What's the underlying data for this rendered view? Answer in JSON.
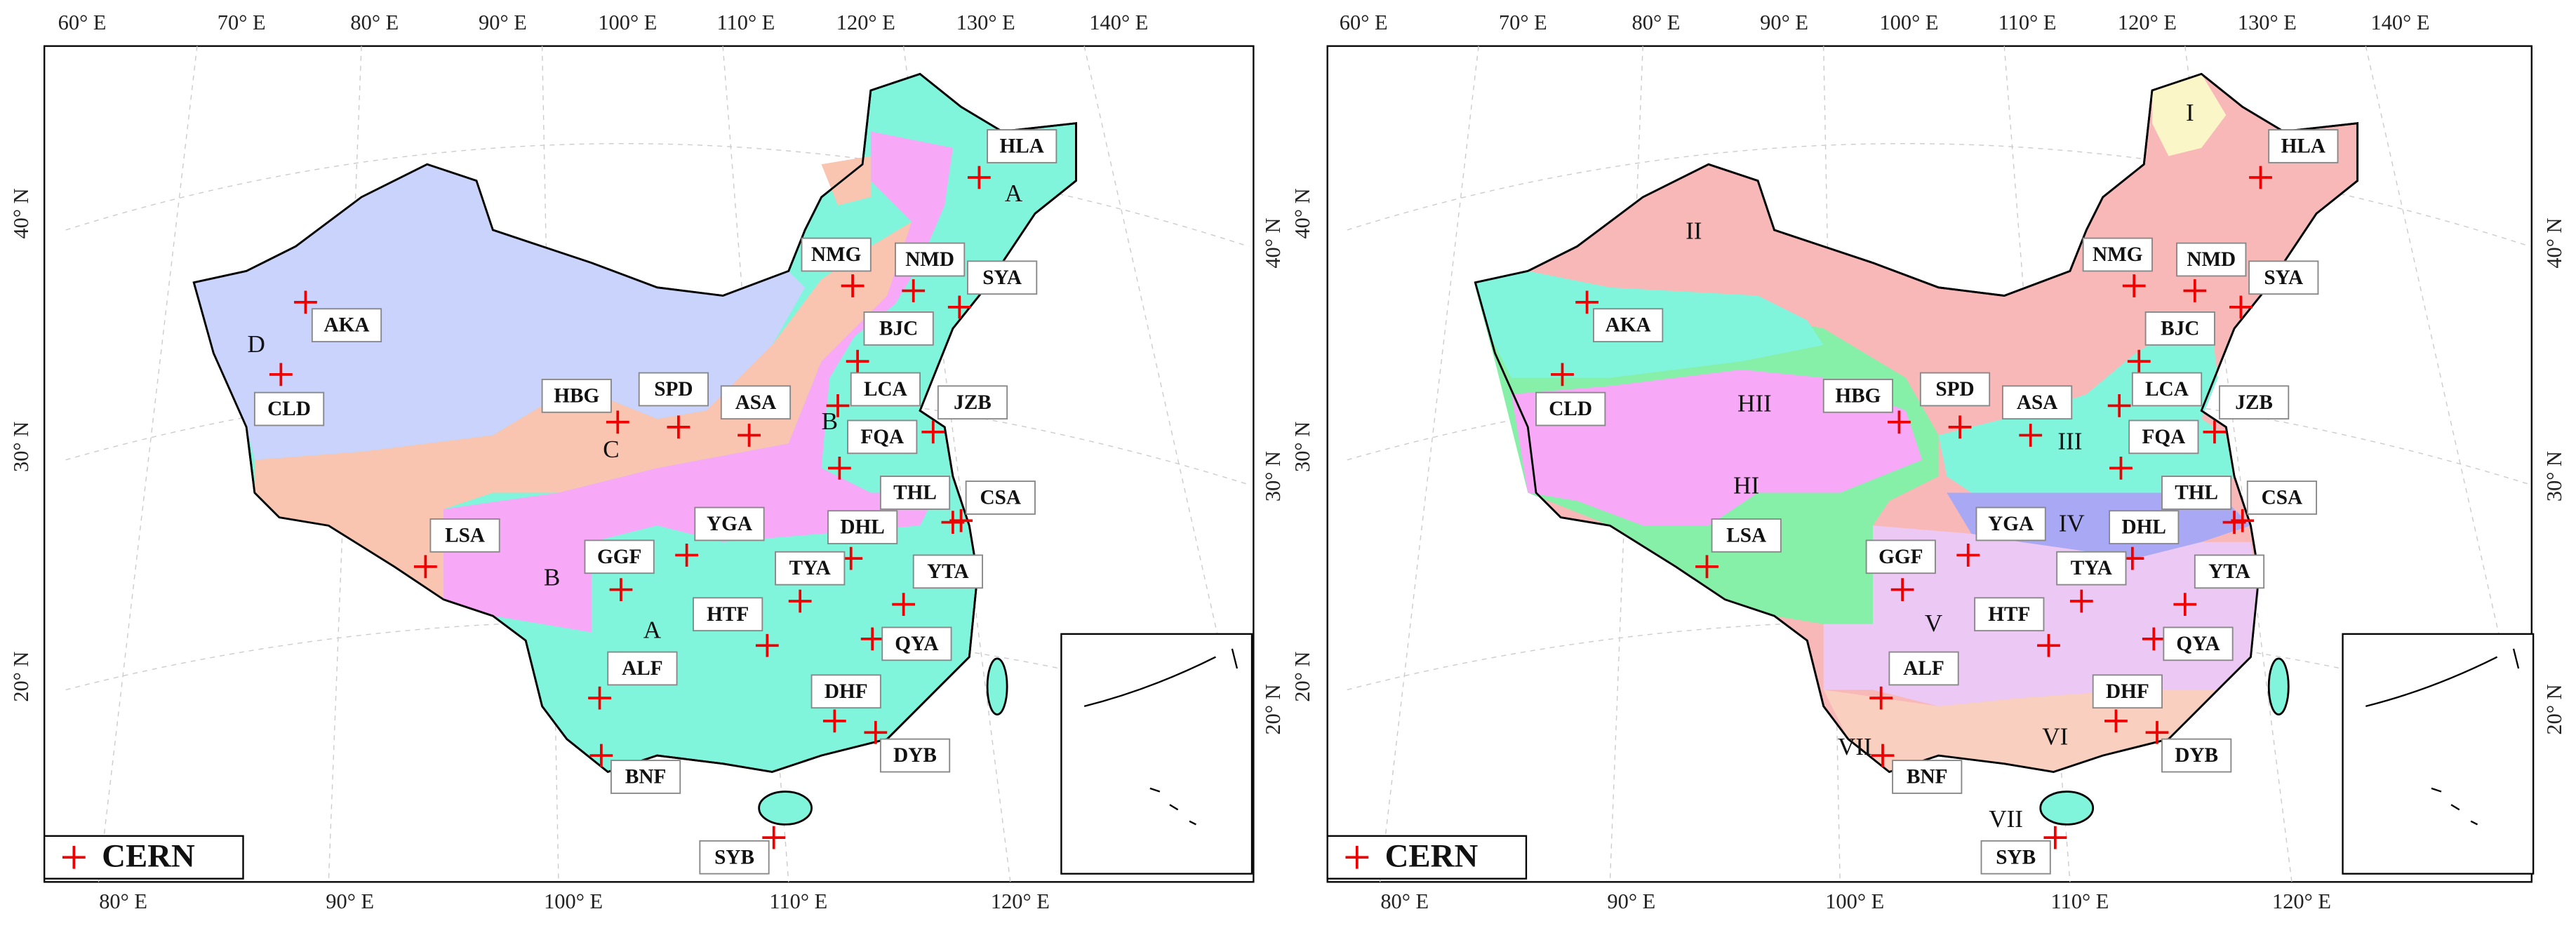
{
  "panels": [
    {
      "top_labels": [
        "60° E",
        "70° E",
        "80° E",
        "90° E",
        "100° E",
        "110° E",
        "120° E",
        "130° E",
        "140° E"
      ],
      "bottom_labels": [
        "80° E",
        "90° E",
        "100° E",
        "110° E",
        "120° E"
      ],
      "left_labels": [
        "40° N",
        "30° N",
        "20° N"
      ],
      "right_labels": [
        "40° N",
        "30° N",
        "20° N"
      ],
      "stations": [
        "AKA",
        "CLD",
        "HBG",
        "SPD",
        "ASA",
        "NMG",
        "NMD",
        "SYA",
        "HLA",
        "BJC",
        "LCA",
        "JZB",
        "FQA",
        "THL",
        "CSA",
        "LSA",
        "GGF",
        "YGA",
        "DHL",
        "TYA",
        "YTA",
        "HTF",
        "QYA",
        "ALF",
        "DHF",
        "DYB",
        "BNF",
        "SYB"
      ],
      "regions": [
        "A",
        "B",
        "B",
        "A",
        "C",
        "D"
      ],
      "legend": "CERN"
    },
    {
      "top_labels": [
        "60° E",
        "70° E",
        "80° E",
        "90° E",
        "100° E",
        "110° E",
        "120° E",
        "130° E",
        "140° E"
      ],
      "bottom_labels": [
        "80° E",
        "90° E",
        "100° E",
        "110° E",
        "120° E"
      ],
      "left_labels": [
        "40° N",
        "30° N",
        "20° N"
      ],
      "right_labels": [
        "40° N",
        "30° N",
        "20° N"
      ],
      "stations": [
        "AKA",
        "CLD",
        "HBG",
        "SPD",
        "ASA",
        "NMG",
        "NMD",
        "SYA",
        "HLA",
        "BJC",
        "LCA",
        "JZB",
        "FQA",
        "THL",
        "CSA",
        "LSA",
        "GGF",
        "YGA",
        "DHL",
        "TYA",
        "YTA",
        "HTF",
        "QYA",
        "ALF",
        "DHF",
        "DYB",
        "BNF",
        "SYB"
      ],
      "regions": [
        "I",
        "II",
        "HII",
        "HI",
        "III",
        "IV",
        "V",
        "VI",
        "VII",
        "VII"
      ],
      "legend": "CERN"
    }
  ]
}
